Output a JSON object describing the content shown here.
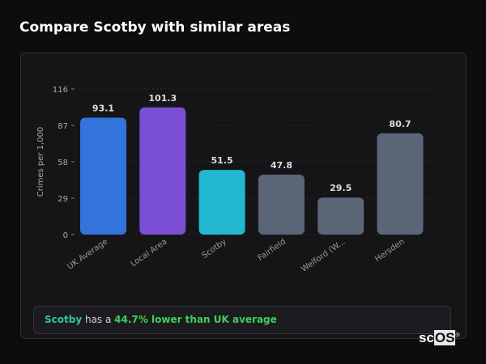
{
  "title": "Compare Scotby with similar areas",
  "chart_data": {
    "type": "bar",
    "categories": [
      "UK Average",
      "Local Area",
      "Scotby",
      "Fairfield",
      "Welford (W...",
      "Hersden"
    ],
    "values": [
      93.1,
      101.3,
      51.5,
      47.8,
      29.5,
      80.7
    ],
    "value_labels": [
      "93.1",
      "101.3",
      "51.5",
      "47.8",
      "29.5",
      "80.7"
    ],
    "colors": [
      "#3273dc",
      "#7b4fd4",
      "#22b8cf",
      "#5a6577",
      "#5a6577",
      "#5a6577"
    ],
    "xlabel": "",
    "ylabel": "Crimes per 1,000",
    "ylim": [
      0,
      116
    ],
    "yticks": [
      0,
      29,
      58,
      87,
      116
    ],
    "grid": true,
    "legend": "none"
  },
  "footer": {
    "area": "Scotby",
    "middle": " has a ",
    "highlight": "44.7% lower than UK average"
  },
  "logo": {
    "text_a": "sc",
    "text_b": "OS",
    "mark": "®"
  }
}
